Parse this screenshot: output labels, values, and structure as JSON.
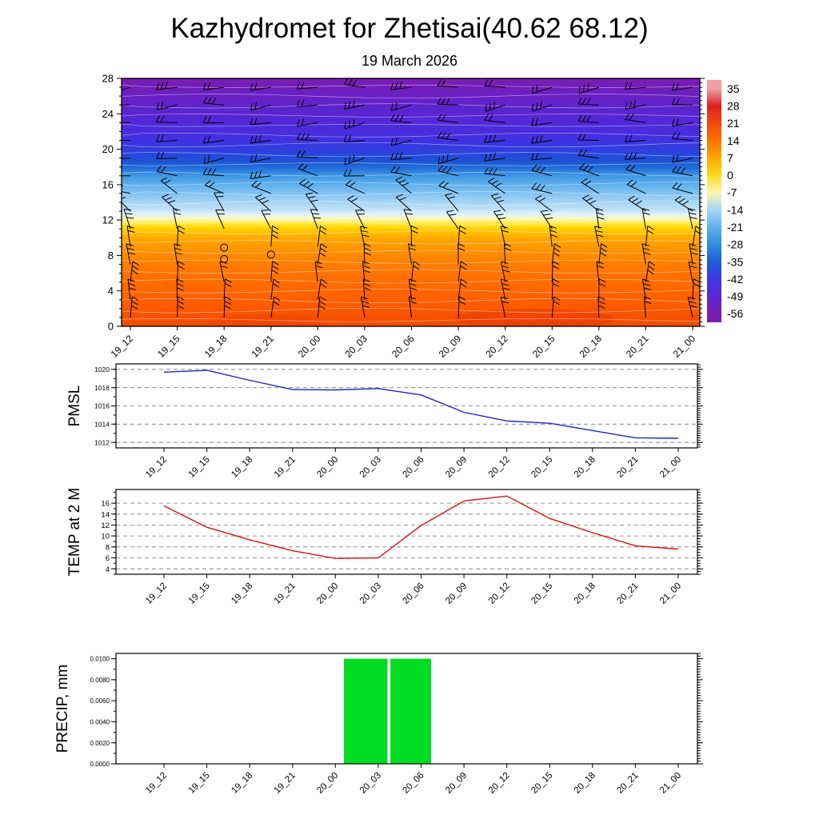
{
  "title": "Kazhydromet for Zhetisai(40.62 68.12)",
  "subtitle": "19 March 2026",
  "time_axis": {
    "tick_labels": [
      "19_12",
      "19_15",
      "19_18",
      "19_21",
      "20_00",
      "20_03",
      "20_06",
      "20_09",
      "20_12",
      "20_15",
      "20_18",
      "20_21",
      "21_00"
    ],
    "span_hours": 36
  },
  "chart_data": [
    {
      "id": "vertical-profile",
      "type": "heatmap",
      "description": "Time-height temperature cross-section with overlaid black wind barbs and thin white isotherm contour lines",
      "yticks": [
        0,
        4,
        8,
        12,
        16,
        20,
        24,
        28
      ],
      "ylim": [
        0,
        28
      ],
      "categories": [
        "19_12",
        "19_15",
        "19_18",
        "19_21",
        "20_00",
        "20_03",
        "20_06",
        "20_09",
        "20_12",
        "20_15",
        "20_18",
        "20_21",
        "21_00"
      ],
      "fill_gradient_bottom_to_top": [
        {
          "at": 0,
          "color": "#f24a00"
        },
        {
          "at": 3,
          "color": "#ff5f00"
        },
        {
          "at": 6,
          "color": "#ff7300"
        },
        {
          "at": 8,
          "color": "#ff8a00"
        },
        {
          "at": 10,
          "color": "#ffa900"
        },
        {
          "at": 11,
          "color": "#ffcf00"
        },
        {
          "at": 11.6,
          "color": "#ffe93c"
        },
        {
          "at": 12.1,
          "color": "#fdf7b4"
        },
        {
          "at": 12.6,
          "color": "#e2f2fa"
        },
        {
          "at": 13.2,
          "color": "#bfe2f8"
        },
        {
          "at": 14.5,
          "color": "#94ccf4"
        },
        {
          "at": 16,
          "color": "#5fb0ec"
        },
        {
          "at": 17,
          "color": "#3f98e4"
        },
        {
          "at": 17.8,
          "color": "#2372da"
        },
        {
          "at": 18.6,
          "color": "#1c55d4"
        },
        {
          "at": 19.6,
          "color": "#2b42de"
        },
        {
          "at": 21,
          "color": "#4032e2"
        },
        {
          "at": 23,
          "color": "#5129d8"
        },
        {
          "at": 25,
          "color": "#6023cc"
        },
        {
          "at": 26.5,
          "color": "#6e1fc0"
        },
        {
          "at": 28,
          "color": "#7b1cb2"
        }
      ],
      "calm_symbols": [
        {
          "col": 2,
          "height": 8.9
        },
        {
          "col": 2,
          "height": 7.6
        },
        {
          "col": 3,
          "height": 8.1
        }
      ],
      "colorbar": {
        "labels": [
          35,
          28,
          21,
          14,
          7,
          0,
          -7,
          -14,
          -21,
          -28,
          -35,
          -42,
          -49,
          -56
        ],
        "colors_top_to_bottom": [
          "#efa0a6",
          "#dd2020",
          "#f24a10",
          "#ff7300",
          "#ffa800",
          "#ffdb1e",
          "#fdf6b4",
          "#a6d6f6",
          "#62b2ec",
          "#2f8ce0",
          "#1f5cd4",
          "#3f38e2",
          "#5b28d2",
          "#7b1cb2"
        ]
      }
    },
    {
      "id": "pmsl",
      "type": "line",
      "ylabel": "PMSL",
      "line_color": "#2222cc",
      "yticks": [
        1012,
        1014,
        1016,
        1018,
        1020
      ],
      "ylim": [
        1011.4,
        1020.6
      ],
      "grid": true,
      "categories": [
        "19_12",
        "19_15",
        "19_18",
        "19_21",
        "20_00",
        "20_03",
        "20_06",
        "20_09",
        "20_12",
        "20_15",
        "20_18",
        "20_21",
        "21_00"
      ],
      "values": [
        1019.7,
        1019.9,
        1018.8,
        1017.8,
        1017.75,
        1017.9,
        1017.2,
        1015.3,
        1014.35,
        1014.1,
        1013.3,
        1012.5,
        1012.45
      ]
    },
    {
      "id": "temp2m",
      "type": "line",
      "ylabel": "TEMP at 2 M",
      "line_color": "#dd1111",
      "yticks": [
        4,
        6,
        8,
        10,
        12,
        14,
        16
      ],
      "ylim": [
        3.0,
        18.5
      ],
      "grid": true,
      "categories": [
        "19_12",
        "19_15",
        "19_18",
        "19_21",
        "20_00",
        "20_03",
        "20_06",
        "20_09",
        "20_12",
        "20_15",
        "20_18",
        "20_21",
        "21_00"
      ],
      "values": [
        15.5,
        11.6,
        9.3,
        7.3,
        5.9,
        6.0,
        11.9,
        16.4,
        17.3,
        13.2,
        10.6,
        8.2,
        7.6
      ]
    },
    {
      "id": "precip",
      "type": "bar",
      "ylabel": "PRECIP, mm",
      "bar_color": "#00dd22",
      "yticks": [
        0,
        0.002,
        0.004,
        0.006,
        0.008,
        0.01
      ],
      "ytick_labels": [
        "0.0000",
        "0.0020",
        "0.0040",
        "0.0060",
        "0.0080",
        "0.0100"
      ],
      "ylim": [
        0,
        0.0105
      ],
      "grid": false,
      "bars": [
        {
          "start_hour_offset": 12.6,
          "end_hour_offset": 15.65,
          "value": 0.01
        },
        {
          "start_hour_offset": 15.85,
          "end_hour_offset": 18.7,
          "value": 0.01
        }
      ]
    }
  ]
}
